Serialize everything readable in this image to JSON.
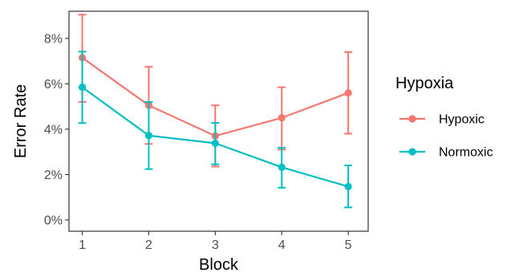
{
  "chart_data": {
    "type": "line",
    "xlabel": "Block",
    "ylabel": "Error Rate",
    "x": [
      1,
      2,
      3,
      4,
      5
    ],
    "x_ticks": [
      "1",
      "2",
      "3",
      "4",
      "5"
    ],
    "xlim": [
      0.8,
      5.3
    ],
    "ylim": [
      -0.5,
      9.2
    ],
    "y_ticks": [
      0,
      2,
      4,
      6,
      8
    ],
    "y_tick_labels": [
      "0%",
      "2%",
      "4%",
      "6%",
      "8%"
    ],
    "grid": true,
    "legend": {
      "title": "Hypoxia",
      "position": "right"
    },
    "series": [
      {
        "name": "Hypoxic",
        "color": "#F8766D",
        "values": [
          7.15,
          5.05,
          3.7,
          4.5,
          5.6
        ],
        "error_low": [
          5.2,
          3.35,
          2.35,
          3.1,
          3.8
        ],
        "error_high": [
          9.05,
          6.75,
          5.05,
          5.85,
          7.4
        ]
      },
      {
        "name": "Normoxic",
        "color": "#00BFC4",
        "values": [
          5.85,
          3.72,
          3.38,
          2.32,
          1.47
        ],
        "error_low": [
          4.27,
          2.24,
          2.45,
          1.42,
          0.55
        ],
        "error_high": [
          7.42,
          5.2,
          4.28,
          3.18,
          2.4
        ]
      }
    ]
  }
}
